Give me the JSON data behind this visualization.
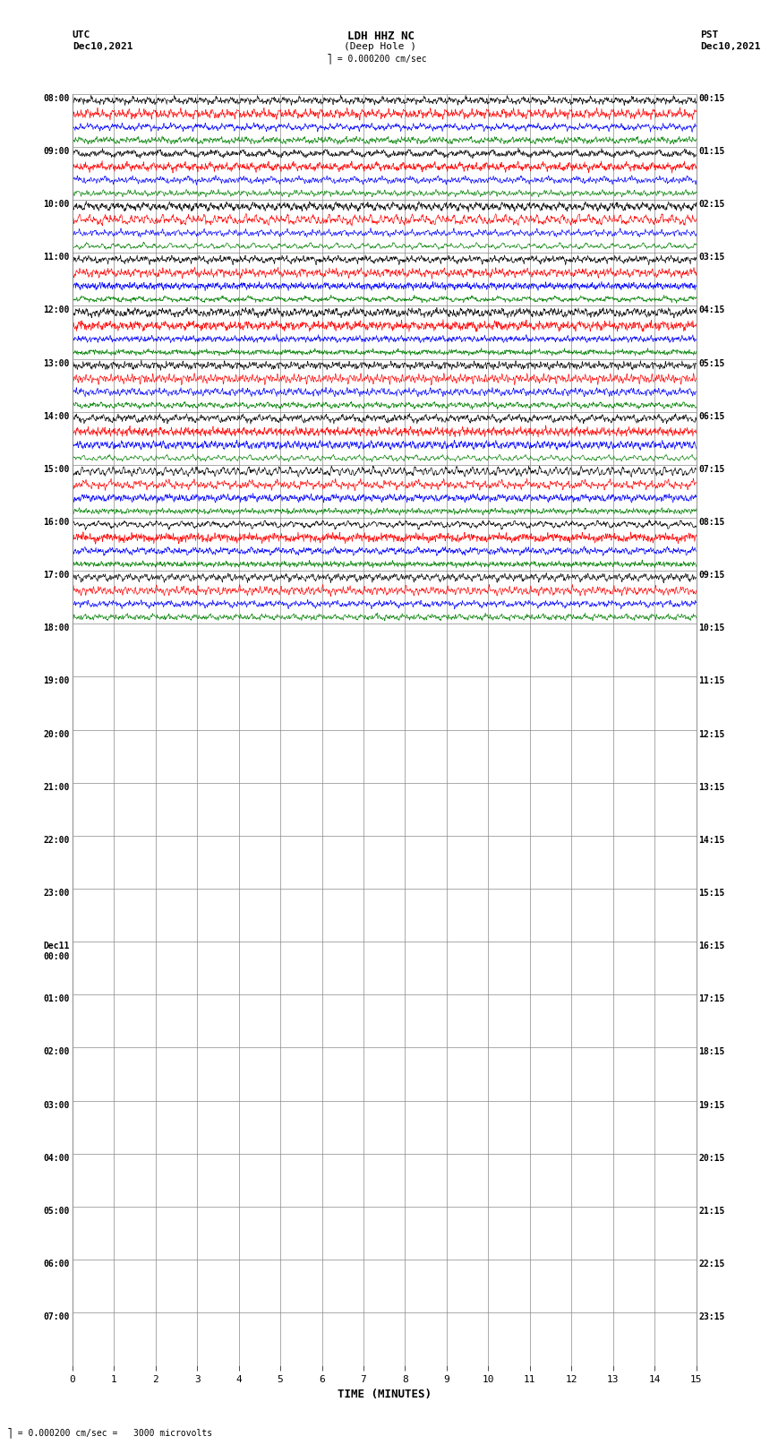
{
  "title_line1": "LDH HHZ NC",
  "title_line2": "(Deep Hole )",
  "scale_label": "= 0.000200 cm/sec",
  "footer_label": "= 0.000200 cm/sec =   3000 microvolts",
  "utc_label": "UTC",
  "pst_label": "PST",
  "date_left": "Dec10,2021",
  "date_right": "Dec10,2021",
  "xlabel": "TIME (MINUTES)",
  "bg_color": "#ffffff",
  "grid_color": "#888888",
  "trace_colors": [
    "black",
    "red",
    "blue",
    "green"
  ],
  "left_times_utc": [
    "08:00",
    "09:00",
    "10:00",
    "11:00",
    "12:00",
    "13:00",
    "14:00",
    "15:00",
    "16:00",
    "17:00",
    "18:00",
    "19:00",
    "20:00",
    "21:00",
    "22:00",
    "23:00",
    "Dec11\n00:00",
    "01:00",
    "02:00",
    "03:00",
    "04:00",
    "05:00",
    "06:00",
    "07:00"
  ],
  "right_times_pst": [
    "00:15",
    "01:15",
    "02:15",
    "03:15",
    "04:15",
    "05:15",
    "06:15",
    "07:15",
    "08:15",
    "09:15",
    "10:15",
    "11:15",
    "12:15",
    "13:15",
    "14:15",
    "15:15",
    "16:15",
    "17:15",
    "18:15",
    "19:15",
    "20:15",
    "21:15",
    "22:15",
    "23:15"
  ],
  "n_rows": 24,
  "n_traces_per_row": 4,
  "active_rows": 10,
  "time_min": 0,
  "time_max": 15,
  "figwidth": 8.5,
  "figheight": 16.13,
  "dpi": 100
}
